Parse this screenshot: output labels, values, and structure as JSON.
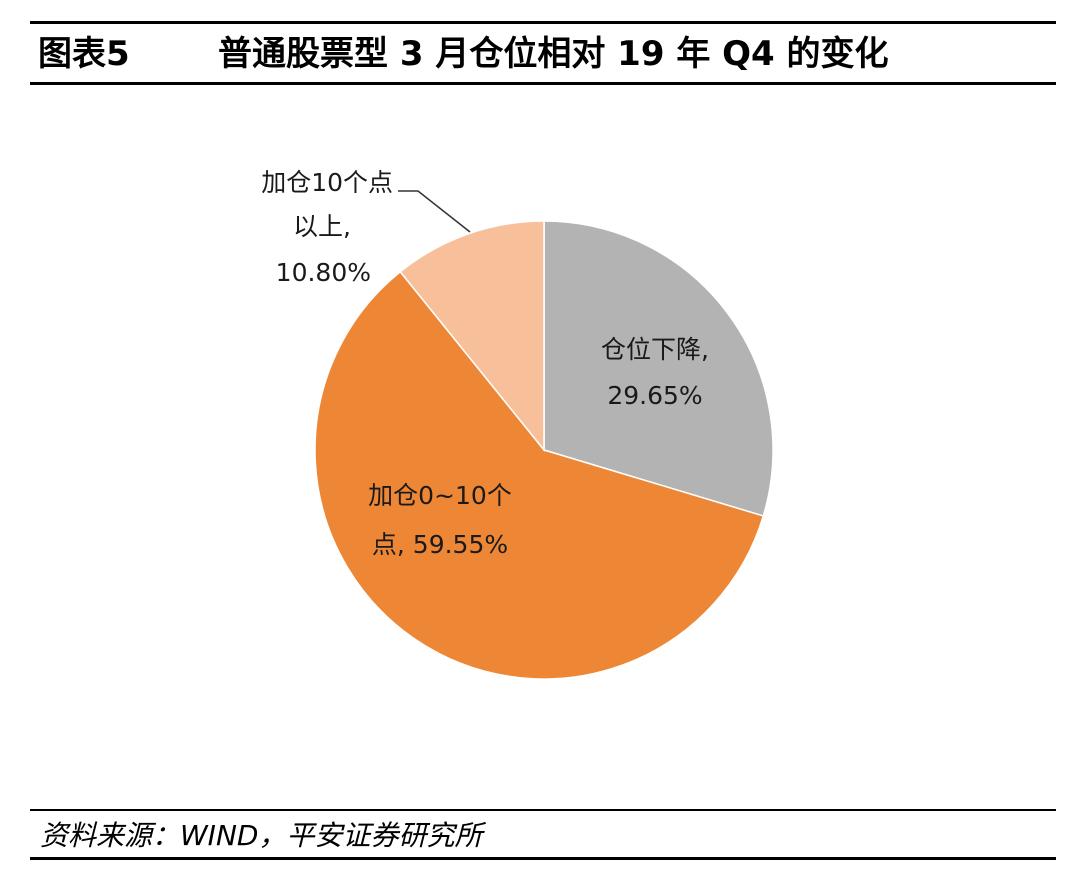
{
  "figure": {
    "label": "图表5",
    "title": "普通股票型 3 月仓位相对 19 年 Q4 的变化"
  },
  "source": "资料来源：WIND，平安证券研究所",
  "chart_data": {
    "type": "pie",
    "title": "普通股票型 3 月仓位相对 19 年 Q4 的变化",
    "start_angle_deg": 0,
    "direction": "clockwise",
    "slices": [
      {
        "name": "仓位下降",
        "value": 29.65,
        "color": "#b3b3b3",
        "label_lines": [
          "仓位下降,",
          "29.65%"
        ]
      },
      {
        "name": "加仓0~10个点",
        "value": 59.55,
        "color": "#ee8735",
        "label_lines": [
          "加仓0~10个",
          "点, 59.55%"
        ]
      },
      {
        "name": "加仓10个点以上",
        "value": 10.8,
        "color": "#f8c09a",
        "label_lines": [
          "加仓10个点",
          "以上,",
          "10.80%"
        ]
      }
    ]
  }
}
